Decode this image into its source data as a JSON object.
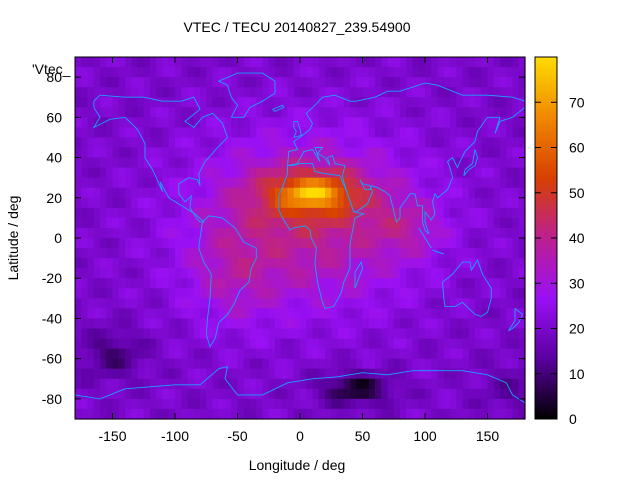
{
  "chart_data": {
    "type": "heatmap",
    "title": "VTEC / TECU 20140827_239.54900",
    "xlabel": "Longitude / deg",
    "ylabel": "Latitude / deg",
    "xlim": [
      -180,
      180
    ],
    "ylim": [
      -90,
      90
    ],
    "x_ticks": [
      -150,
      -100,
      -50,
      0,
      50,
      100,
      150
    ],
    "y_ticks": [
      -80,
      -60,
      -40,
      -20,
      0,
      20,
      40,
      60,
      80
    ],
    "x_tick_labels": [
      "-150",
      "-100",
      "-50",
      "0",
      "50",
      "100",
      "150"
    ],
    "y_tick_labels": [
      "-80",
      "-60",
      "-40",
      "-20",
      "0",
      "20",
      "40",
      "60",
      "80"
    ],
    "colorbar": {
      "range": [
        0,
        80
      ],
      "ticks": [
        0,
        10,
        20,
        30,
        40,
        50,
        60,
        70
      ],
      "tick_labels": [
        "0",
        "10",
        "20",
        "30",
        "40",
        "50",
        "60",
        "70"
      ],
      "palette": [
        "#000000",
        "#5a00a0",
        "#9a10f5",
        "#bc2090",
        "#d84000",
        "#f08800",
        "#ffdc00"
      ]
    },
    "legend_entry": "'Vtec_",
    "overlay": "coastlines",
    "coast_color": "#1aa0ff",
    "features": {
      "background_level": 20,
      "equatorial_anomaly_peak": {
        "lon": 10,
        "lat": 20,
        "value": 75
      },
      "enhanced_region": {
        "lon_range": [
          -100,
          110
        ],
        "lat_range": [
          -45,
          55
        ],
        "value": 40
      },
      "southern_minimum": {
        "lon": 45,
        "lat": -75,
        "value": 2
      }
    }
  }
}
